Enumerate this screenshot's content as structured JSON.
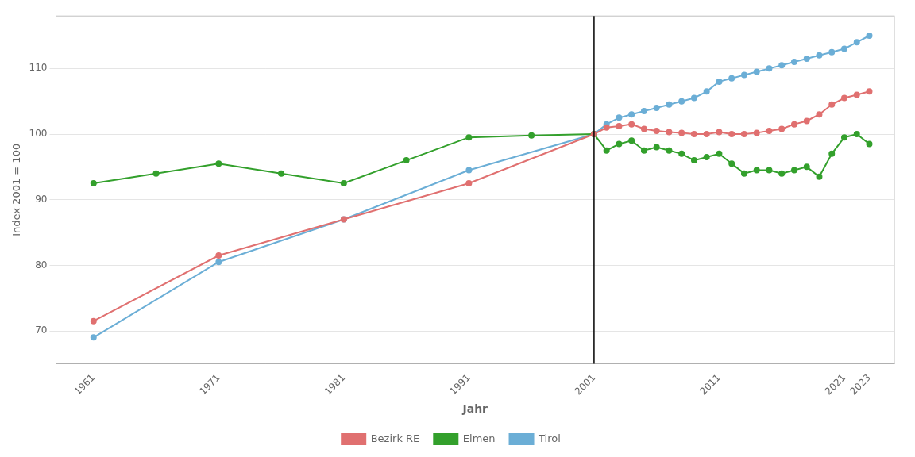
{
  "chart_data": {
    "type": "line",
    "xlabel": "Jahr",
    "ylabel": "Index 2001 = 100",
    "xlim": [
      1958,
      2025
    ],
    "ylim": [
      65,
      118
    ],
    "xticks": [
      1961,
      1971,
      1981,
      1991,
      2001,
      2011,
      2021,
      2023
    ],
    "yticks": [
      70,
      80,
      90,
      100,
      110
    ],
    "grid": "y",
    "legend": "bottom",
    "vline_x": 2001,
    "series": [
      {
        "name": "Bezirk RE",
        "color": "#E07070",
        "marker": "circle",
        "x": [
          1961,
          1971,
          1981,
          1991,
          2001,
          2002,
          2003,
          2004,
          2005,
          2006,
          2007,
          2008,
          2009,
          2010,
          2011,
          2012,
          2013,
          2014,
          2015,
          2016,
          2017,
          2018,
          2019,
          2020,
          2021,
          2022,
          2023
        ],
        "values": [
          71.5,
          81.5,
          87.0,
          92.5,
          100.0,
          101.0,
          101.2,
          101.5,
          100.8,
          100.5,
          100.3,
          100.2,
          100.0,
          100.0,
          100.3,
          100.0,
          100.0,
          100.2,
          100.5,
          100.8,
          101.5,
          102.0,
          103.0,
          104.5,
          105.5,
          106.0,
          106.5
        ]
      },
      {
        "name": "Elmen",
        "color": "#33A02C",
        "marker": "circle",
        "x": [
          1961,
          1966,
          1971,
          1976,
          1981,
          1986,
          1991,
          1996,
          2001,
          2002,
          2003,
          2004,
          2005,
          2006,
          2007,
          2008,
          2009,
          2010,
          2011,
          2012,
          2013,
          2014,
          2015,
          2016,
          2017,
          2018,
          2019,
          2020,
          2021,
          2022,
          2023
        ],
        "values": [
          92.5,
          94.0,
          95.5,
          94.0,
          92.5,
          96.0,
          99.5,
          99.8,
          100.0,
          97.5,
          98.5,
          99.0,
          97.5,
          98.0,
          97.5,
          97.0,
          96.0,
          96.5,
          97.0,
          95.5,
          94.0,
          94.5,
          94.5,
          94.0,
          94.5,
          95.0,
          93.5,
          97.0,
          99.5,
          100.0,
          98.5
        ]
      },
      {
        "name": "Tirol",
        "color": "#6BAED6",
        "marker": "circle",
        "x": [
          1961,
          1971,
          1981,
          1991,
          2001,
          2002,
          2003,
          2004,
          2005,
          2006,
          2007,
          2008,
          2009,
          2010,
          2011,
          2012,
          2013,
          2014,
          2015,
          2016,
          2017,
          2018,
          2019,
          2020,
          2021,
          2022,
          2023
        ],
        "values": [
          69.0,
          80.5,
          87.0,
          94.5,
          100.0,
          101.5,
          102.5,
          103.0,
          103.5,
          104.0,
          104.5,
          105.0,
          105.5,
          106.5,
          108.0,
          108.5,
          109.0,
          109.5,
          110.0,
          110.5,
          111.0,
          111.5,
          112.0,
          112.5,
          113.0,
          114.0,
          115.0
        ]
      }
    ]
  }
}
